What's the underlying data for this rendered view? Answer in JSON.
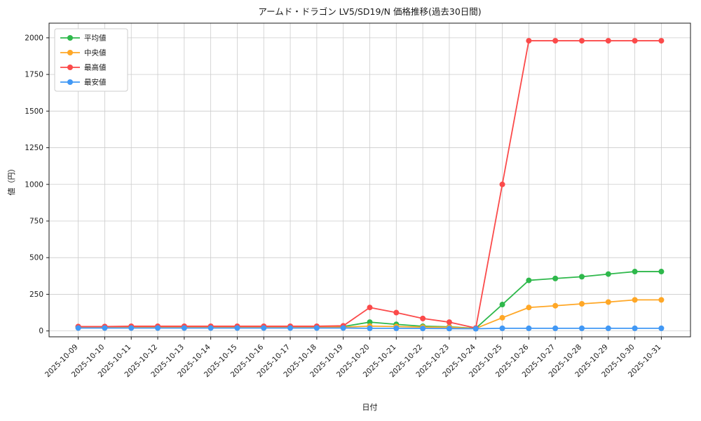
{
  "chart_data": {
    "type": "line",
    "title": "アームド・ドラゴン LV5/SD19/N 価格推移(過去30日間)",
    "xlabel": "日付",
    "ylabel": "値（円）",
    "grid": true,
    "legend_position": "upper-left",
    "ylim": [
      -40,
      2100
    ],
    "yticks": [
      0,
      250,
      500,
      750,
      1000,
      1250,
      1500,
      1750,
      2000
    ],
    "x": [
      "2025-10-09",
      "2025-10-10",
      "2025-10-11",
      "2025-10-12",
      "2025-10-13",
      "2025-10-14",
      "2025-10-15",
      "2025-10-16",
      "2025-10-17",
      "2025-10-18",
      "2025-10-19",
      "2025-10-20",
      "2025-10-21",
      "2025-10-22",
      "2025-10-23",
      "2025-10-24",
      "2025-10-25",
      "2025-10-26",
      "2025-10-27",
      "2025-10-28",
      "2025-10-29",
      "2025-10-30",
      "2025-10-31"
    ],
    "series": [
      {
        "name": "平均値",
        "color": "#2eb84b",
        "values": [
          28,
          28,
          28,
          28,
          28,
          28,
          28,
          28,
          28,
          28,
          30,
          60,
          45,
          32,
          28,
          18,
          180,
          345,
          358,
          370,
          388,
          405,
          405
        ]
      },
      {
        "name": "中央値",
        "color": "#ffa726",
        "values": [
          25,
          25,
          25,
          25,
          25,
          25,
          25,
          25,
          25,
          25,
          26,
          33,
          30,
          26,
          25,
          17,
          90,
          160,
          172,
          185,
          197,
          212,
          212
        ]
      },
      {
        "name": "最高値",
        "color": "#fb4a4a",
        "values": [
          30,
          30,
          32,
          32,
          32,
          32,
          32,
          32,
          32,
          32,
          35,
          160,
          125,
          85,
          60,
          20,
          1000,
          1980,
          1980,
          1980,
          1980,
          1980,
          1980
        ]
      },
      {
        "name": "最安値",
        "color": "#4198f5",
        "values": [
          20,
          20,
          20,
          20,
          20,
          20,
          20,
          20,
          20,
          20,
          20,
          18,
          18,
          17,
          16,
          15,
          18,
          18,
          18,
          18,
          18,
          18,
          18
        ]
      }
    ]
  }
}
